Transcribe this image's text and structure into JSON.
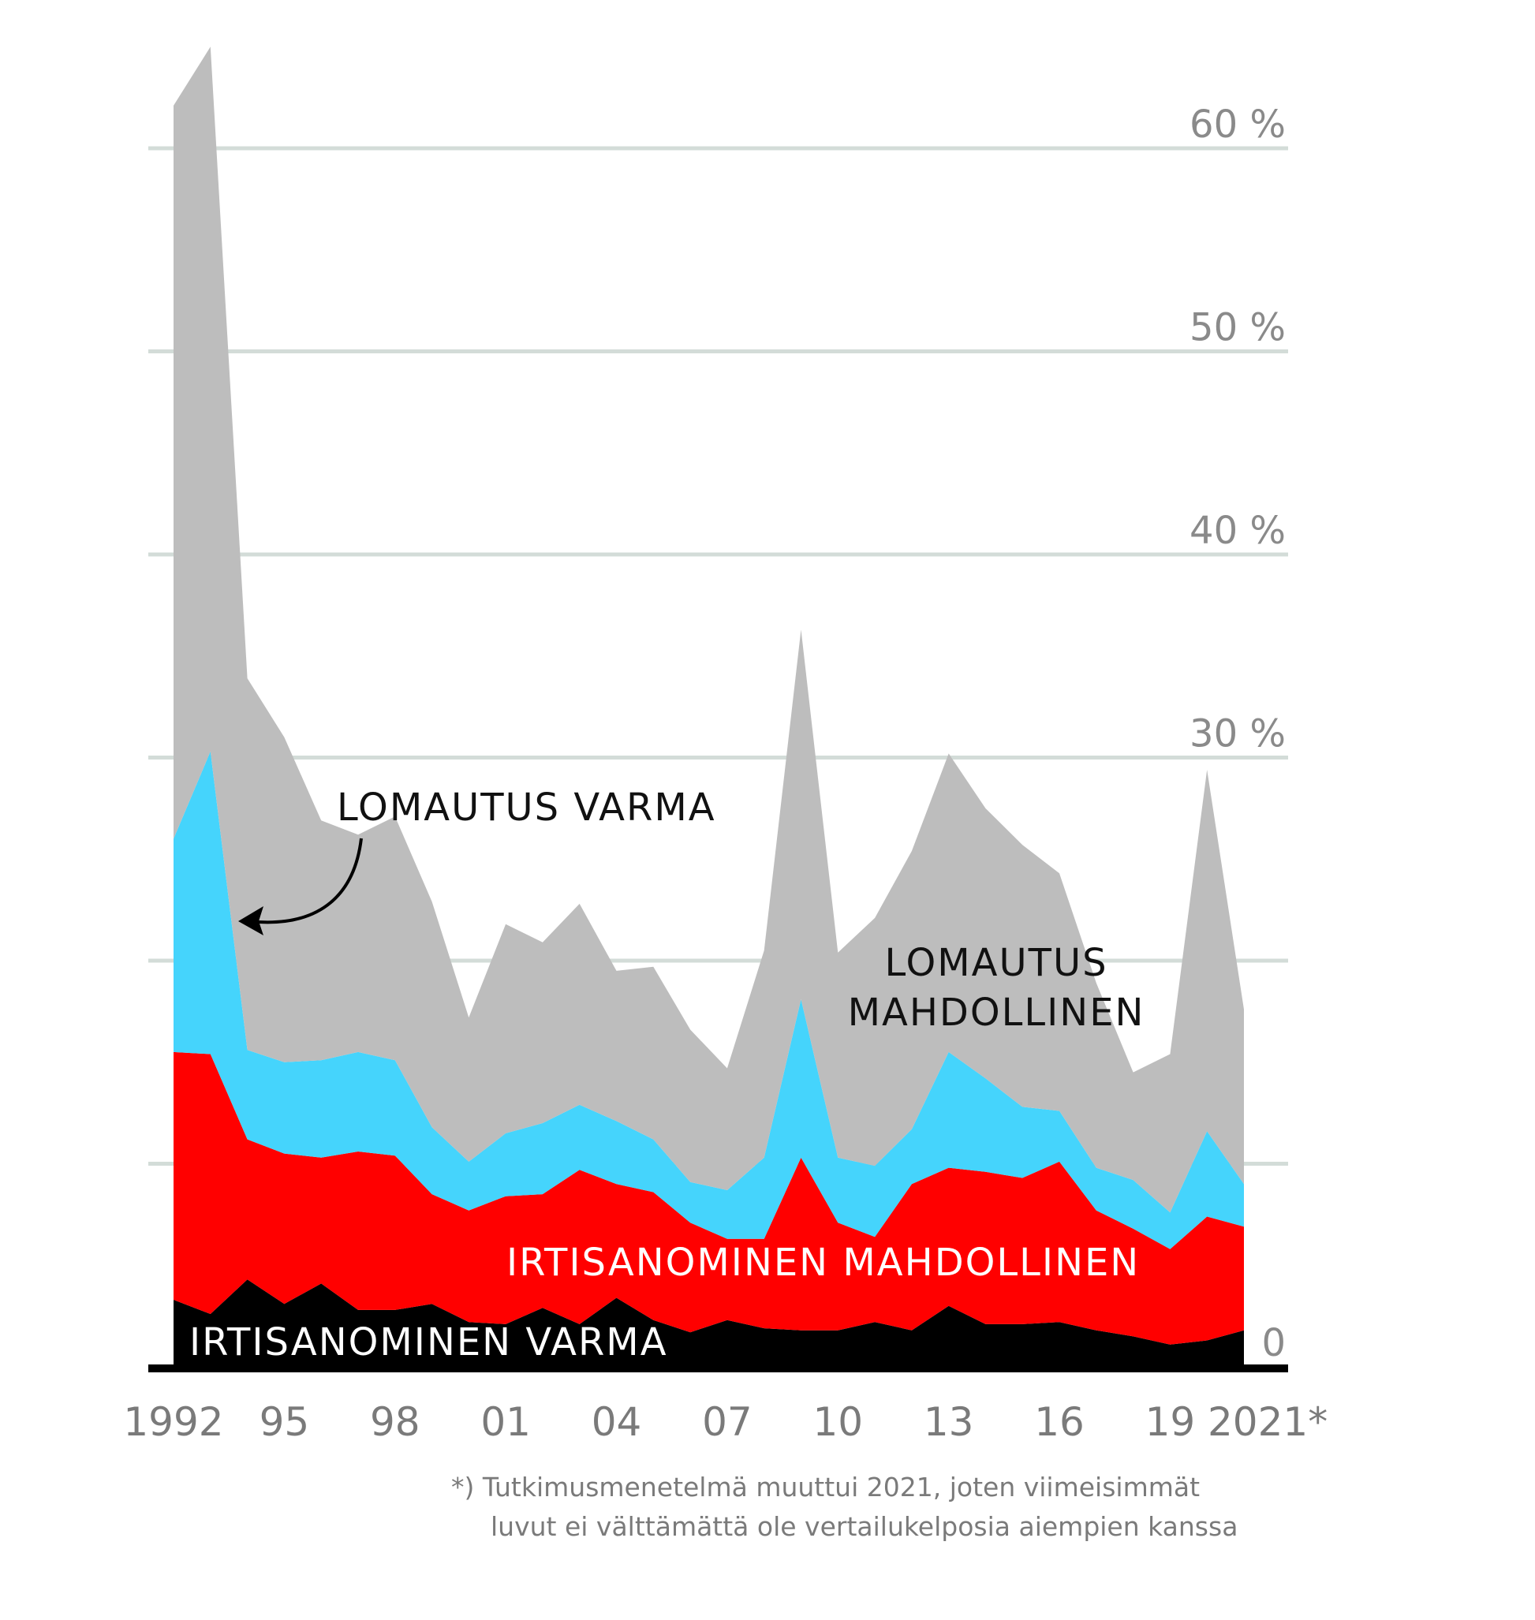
{
  "chart_data": {
    "type": "area",
    "stacked": true,
    "x": [
      1992,
      1993,
      1994,
      1995,
      1996,
      1997,
      1998,
      1999,
      2000,
      2001,
      2002,
      2003,
      2004,
      2005,
      2006,
      2007,
      2008,
      2009,
      2010,
      2011,
      2012,
      2013,
      2014,
      2015,
      2016,
      2017,
      2018,
      2019,
      2020,
      2021
    ],
    "x_tick_labels": [
      {
        "x": 1992,
        "label": "1992"
      },
      {
        "x": 1995,
        "label": "95"
      },
      {
        "x": 1998,
        "label": "98"
      },
      {
        "x": 2001,
        "label": "01"
      },
      {
        "x": 2004,
        "label": "04"
      },
      {
        "x": 2007,
        "label": "07"
      },
      {
        "x": 2010,
        "label": "10"
      },
      {
        "x": 2013,
        "label": "13"
      },
      {
        "x": 2016,
        "label": "16"
      },
      {
        "x": 2019,
        "label": "19"
      },
      {
        "x": 2021,
        "label": "2021*"
      }
    ],
    "y_ticks": [
      {
        "value": 0,
        "label": "0"
      },
      {
        "value": 10,
        "label": ""
      },
      {
        "value": 20,
        "label": ""
      },
      {
        "value": 30,
        "label": "30 %"
      },
      {
        "value": 40,
        "label": "40 %"
      },
      {
        "value": 50,
        "label": "50 %"
      },
      {
        "value": 60,
        "label": "60 %"
      }
    ],
    "ylim": [
      0,
      65
    ],
    "grid": true,
    "series": [
      {
        "name": "IRTISANOMINEN VARMA",
        "color": "#000000",
        "values": [
          3.3,
          2.6,
          4.3,
          3.1,
          4.1,
          2.8,
          2.8,
          3.1,
          2.2,
          2.1,
          2.9,
          2.1,
          3.4,
          2.3,
          1.7,
          2.3,
          1.9,
          1.8,
          1.8,
          2.2,
          1.8,
          3.0,
          2.1,
          2.1,
          2.2,
          1.8,
          1.5,
          1.1,
          1.3,
          1.8
        ]
      },
      {
        "name": "IRTISANOMINEN MAHDOLLINEN",
        "color": "#ff0000",
        "values": [
          12.2,
          12.8,
          6.9,
          7.4,
          6.2,
          7.8,
          7.6,
          5.4,
          5.5,
          6.3,
          5.6,
          7.6,
          5.6,
          6.3,
          5.4,
          4.0,
          4.4,
          8.5,
          5.3,
          4.2,
          7.2,
          6.8,
          7.5,
          7.2,
          7.9,
          5.9,
          5.3,
          4.7,
          6.1,
          5.1
        ]
      },
      {
        "name": "LOMAUTUS VARMA",
        "color": "#45d4fc",
        "values": [
          10.5,
          14.9,
          4.4,
          4.5,
          4.8,
          4.9,
          4.7,
          3.3,
          2.4,
          3.1,
          3.5,
          3.2,
          3.1,
          2.6,
          2.0,
          2.4,
          4.0,
          7.8,
          3.2,
          3.5,
          2.7,
          5.7,
          4.6,
          3.5,
          2.5,
          2.1,
          2.4,
          1.8,
          4.2,
          2.1
        ]
      },
      {
        "name": "LOMAUTUS MAHDOLLINEN",
        "color": "#bdbdbd",
        "values": [
          36.1,
          34.7,
          18.3,
          16.0,
          11.8,
          10.7,
          12.0,
          11.1,
          7.1,
          10.3,
          8.9,
          9.9,
          7.4,
          8.5,
          7.5,
          6.0,
          10.2,
          18.2,
          10.1,
          12.2,
          13.7,
          14.7,
          13.3,
          12.9,
          11.7,
          9.1,
          5.3,
          7.8,
          17.8,
          8.6
        ]
      }
    ],
    "annotations": [
      {
        "text_lines": [
          "LOMAUTUS VARMA"
        ],
        "arrow": true
      },
      {
        "text_lines": [
          "LOMAUTUS",
          "MAHDOLLINEN"
        ]
      },
      {
        "text_lines": [
          "IRTISANOMINEN MAHDOLLINEN"
        ]
      },
      {
        "text_lines": [
          "IRTISANOMINEN VARMA"
        ]
      }
    ],
    "footnote_lines": [
      "*) Tutkimusmenetelmä muuttui 2021, joten viimeisimmät",
      "luvut ei välttämättä ole vertailukelposia aiempien kanssa"
    ],
    "colors": {
      "gridline": "#d3dcd8",
      "tick_text": "#8a8a8a",
      "baseline": "#000000",
      "irtisanominen_mahdollinen_label": "#ffffff"
    }
  }
}
